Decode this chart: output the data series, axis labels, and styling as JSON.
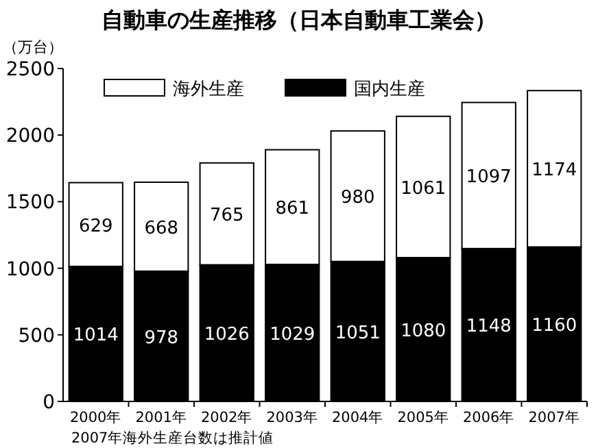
{
  "chart_data": {
    "type": "bar",
    "stacked": true,
    "title": "自動車の生産推移（日本自動車工業会）",
    "ylabel": "（万台）",
    "categories": [
      "2000年",
      "2001年",
      "2002年",
      "2003年",
      "2004年",
      "2005年",
      "2006年",
      "2007年"
    ],
    "series": [
      {
        "name": "国内生産",
        "color": "#000000",
        "values": [
          1014,
          978,
          1026,
          1029,
          1051,
          1080,
          1148,
          1160
        ]
      },
      {
        "name": "海外生産",
        "color": "#ffffff",
        "values": [
          629,
          668,
          765,
          861,
          980,
          1061,
          1097,
          1174
        ]
      }
    ],
    "ylim": [
      0,
      2500
    ],
    "yticks": [
      0,
      500,
      1000,
      1500,
      2000,
      2500
    ],
    "data_labels": true,
    "legend": "top left",
    "annotations": [
      "2007年海外生産台数は推計値"
    ]
  }
}
